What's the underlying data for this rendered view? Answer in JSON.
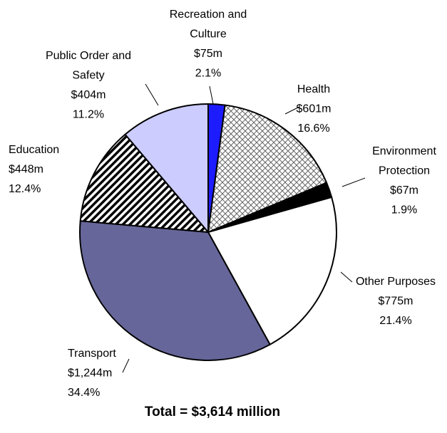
{
  "chart_data": {
    "type": "pie",
    "categories": [
      "Recreation and Culture",
      "Health",
      "Environment Protection",
      "Other Purposes",
      "Transport",
      "Education",
      "Public Order and Safety"
    ],
    "amount_labels": [
      "$75m",
      "$601m",
      "$67m",
      "$775m",
      "$1,244m",
      "$448m",
      "$404m"
    ],
    "values": [
      2.1,
      16.6,
      1.9,
      21.4,
      34.4,
      12.4,
      11.2
    ],
    "value_labels": [
      "2.1%",
      "16.6%",
      "1.9%",
      "21.4%",
      "34.4%",
      "12.4%",
      "11.2%"
    ],
    "colors": [
      "#1c1cff",
      "#ffffff",
      "#000000",
      "#ffffff",
      "#66669a",
      "#ffffff",
      "#ccccff"
    ],
    "patterns": [
      null,
      "crosshatch",
      null,
      null,
      null,
      "diagonal",
      null
    ],
    "total": "Total = $3,614 million"
  }
}
